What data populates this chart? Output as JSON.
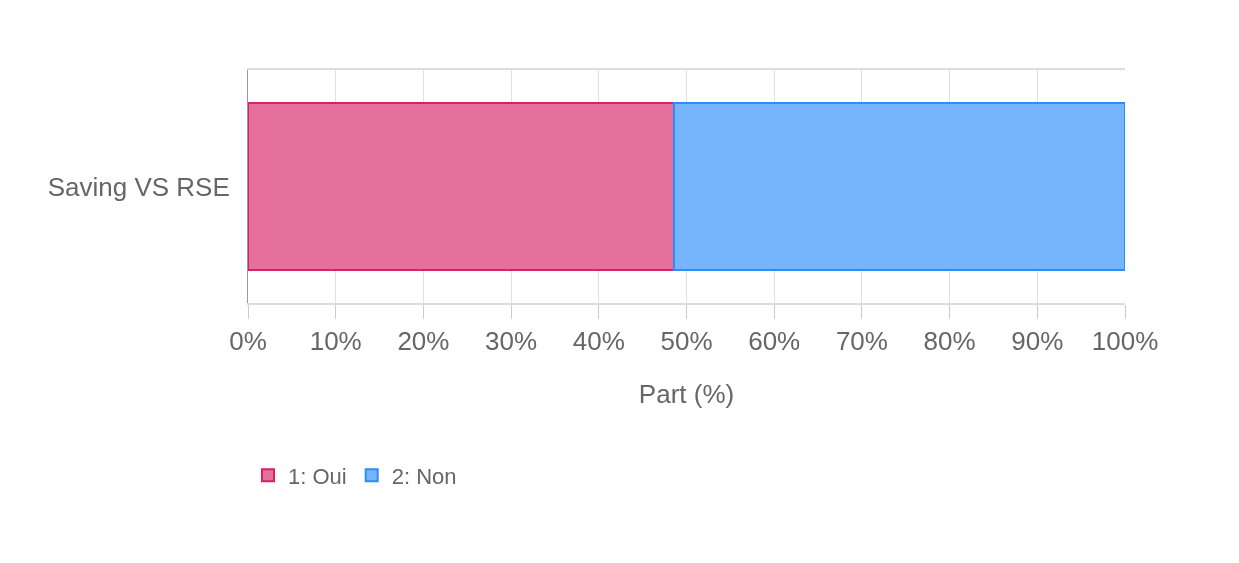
{
  "chart_data": {
    "type": "bar",
    "orientation": "horizontal",
    "stacked": true,
    "categories": [
      "Saving VS RSE"
    ],
    "series": [
      {
        "name": "1: Oui",
        "color": "#e5709b",
        "values": [
          48.6
        ]
      },
      {
        "name": "2: Non",
        "color": "#76b4fc",
        "values": [
          51.4
        ]
      }
    ],
    "xlabel": "Part (%)",
    "xlim": [
      0,
      100
    ],
    "xticks": [
      {
        "value": 0,
        "label": "0%"
      },
      {
        "value": 10,
        "label": "10%"
      },
      {
        "value": 20,
        "label": "20%"
      },
      {
        "value": 30,
        "label": "30%"
      },
      {
        "value": 40,
        "label": "40%"
      },
      {
        "value": 50,
        "label": "50%"
      },
      {
        "value": 60,
        "label": "60%"
      },
      {
        "value": 70,
        "label": "70%"
      },
      {
        "value": 80,
        "label": "80%"
      },
      {
        "value": 90,
        "label": "90%"
      },
      {
        "value": 100,
        "label": "100%"
      }
    ],
    "grid": "x",
    "legend": "bottom left"
  }
}
